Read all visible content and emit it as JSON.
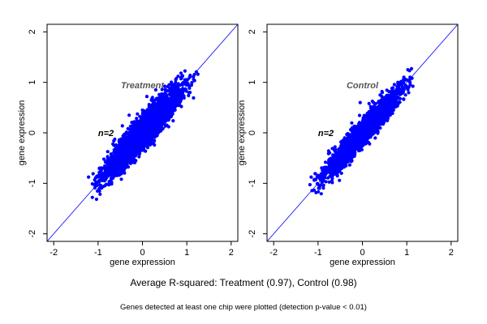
{
  "footer": {
    "r_squared_text": "Average R-squared: Treatment (0.97), Control (0.98)",
    "detection_note": "Genes detected at least one chip were plotted (detection p-value < 0.01)"
  },
  "colors": {
    "points": "#0000ff",
    "diagonal": "#0000ff",
    "axis": "#000000",
    "panel_label": "#555555"
  },
  "chart_data": [
    {
      "type": "scatter",
      "title": "",
      "xlabel": "gene expression",
      "ylabel": "gene expression",
      "xlim": [
        -2.15,
        2.15
      ],
      "ylim": [
        -2.15,
        2.15
      ],
      "xticks": [
        -2,
        -1,
        0,
        1,
        2
      ],
      "yticks": [
        -2,
        -1,
        0,
        1,
        2
      ],
      "annotations": [
        "Treatment",
        "n=2"
      ],
      "reference_line": "y = x",
      "point_cloud": {
        "center": [
          0,
          0
        ],
        "x_range": [
          -1.1,
          1.2
        ],
        "slope": 1.0,
        "spread_sd": 0.14,
        "approx_points": 3000
      },
      "outliers": [
        [
          0.1,
          0.72
        ],
        [
          0.3,
          0.85
        ],
        [
          -0.3,
          0.35
        ],
        [
          0.55,
          0.15
        ],
        [
          -0.5,
          -0.2
        ],
        [
          0.75,
          1.05
        ],
        [
          0.0,
          0.45
        ],
        [
          -0.15,
          -0.55
        ],
        [
          0.6,
          0.95
        ]
      ]
    },
    {
      "type": "scatter",
      "title": "",
      "xlabel": "gene expression",
      "ylabel": "gene expression",
      "xlim": [
        -2.15,
        2.15
      ],
      "ylim": [
        -2.15,
        2.15
      ],
      "xticks": [
        -2,
        -1,
        0,
        1,
        2
      ],
      "yticks": [
        -2,
        -1,
        0,
        1,
        2
      ],
      "annotations": [
        "Control",
        "n=2"
      ],
      "reference_line": "y = x",
      "point_cloud": {
        "center": [
          0,
          0
        ],
        "x_range": [
          -1.1,
          1.2
        ],
        "slope": 1.0,
        "spread_sd": 0.1,
        "approx_points": 3000
      },
      "outliers": [
        [
          0.15,
          0.58
        ],
        [
          0.25,
          0.6
        ],
        [
          -0.05,
          0.6
        ],
        [
          0.4,
          0.75
        ],
        [
          0.8,
          1.0
        ],
        [
          -0.4,
          -0.1
        ],
        [
          0.3,
          0.05
        ]
      ]
    }
  ]
}
